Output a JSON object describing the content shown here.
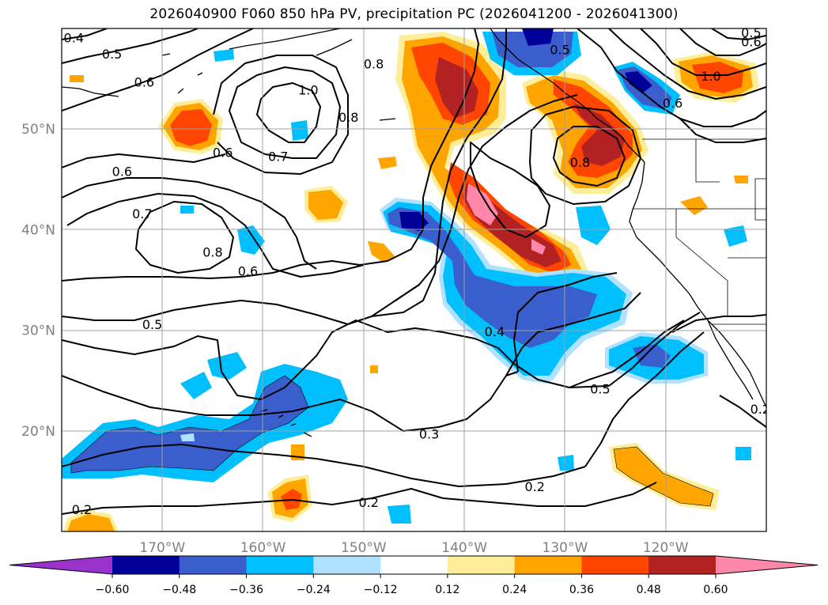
{
  "title": "2026040900 F060 850 hPa PV, precipitation PC (2026041200 - 2026041300)",
  "map": {
    "lon_range": [
      -180,
      -110
    ],
    "lat_range": [
      10,
      60
    ],
    "lat_ticks": [
      {
        "value": 50,
        "label": "50°N"
      },
      {
        "value": 40,
        "label": "40°N"
      },
      {
        "value": 30,
        "label": "30°N"
      },
      {
        "value": 20,
        "label": "20°N"
      }
    ],
    "lon_ticks": [
      {
        "value": -170,
        "label": "170°W"
      },
      {
        "value": -160,
        "label": "160°W"
      },
      {
        "value": -150,
        "label": "150°W"
      },
      {
        "value": -140,
        "label": "140°W"
      },
      {
        "value": -130,
        "label": "130°W"
      },
      {
        "value": -120,
        "label": "120°W"
      }
    ],
    "grid": true
  },
  "colorbar": {
    "extend": "both",
    "colors": [
      "#9933cc",
      "#000099",
      "#3a5fcd",
      "#00bfff",
      "#b0e2ff",
      "#ffffff",
      "#ffee99",
      "#ffa500",
      "#ff4500",
      "#b22222",
      "#ff88aa"
    ],
    "boundaries": [
      -0.6,
      -0.48,
      -0.36,
      -0.24,
      -0.12,
      0.12,
      0.24,
      0.36,
      0.48,
      0.6
    ],
    "labels": [
      "−0.60",
      "−0.48",
      "−0.36",
      "−0.24",
      "−0.12",
      "0.12",
      "0.24",
      "0.36",
      "0.48",
      "0.60"
    ]
  },
  "contour_labels": [
    {
      "text": "0.4",
      "lon": -178.8,
      "lat": 59.1
    },
    {
      "text": "0.5",
      "lon": -175,
      "lat": 57.5
    },
    {
      "text": "0.6",
      "lon": -171.8,
      "lat": 54.7
    },
    {
      "text": "1.0",
      "lon": -155.5,
      "lat": 53.9
    },
    {
      "text": "0.8",
      "lon": -151.5,
      "lat": 51.2
    },
    {
      "text": "0.8",
      "lon": -149,
      "lat": 56.5
    },
    {
      "text": "0.6",
      "lon": -174,
      "lat": 45.8
    },
    {
      "text": "0.6",
      "lon": -164,
      "lat": 47.7
    },
    {
      "text": "0.7",
      "lon": -158.5,
      "lat": 47.3
    },
    {
      "text": "0.7",
      "lon": -172,
      "lat": 41.6
    },
    {
      "text": "0.8",
      "lon": -165,
      "lat": 37.8
    },
    {
      "text": "0.6",
      "lon": -161.5,
      "lat": 35.9
    },
    {
      "text": "0.5",
      "lon": -171,
      "lat": 30.6
    },
    {
      "text": "0.4",
      "lon": -137,
      "lat": 29.9
    },
    {
      "text": "0.5",
      "lon": -126.5,
      "lat": 24.2
    },
    {
      "text": "0.3",
      "lon": -143.5,
      "lat": 19.7
    },
    {
      "text": "0.2",
      "lon": -133,
      "lat": 14.5
    },
    {
      "text": "0.2",
      "lon": -149.5,
      "lat": 12.9
    },
    {
      "text": "0.2",
      "lon": -178,
      "lat": 12.2
    },
    {
      "text": "0.8",
      "lon": -128.5,
      "lat": 46.7
    },
    {
      "text": "1.0",
      "lon": -115.5,
      "lat": 55.3
    },
    {
      "text": "0.6",
      "lon": -111.5,
      "lat": 58.7
    },
    {
      "text": "0.5",
      "lon": -111.5,
      "lat": 59.6
    },
    {
      "text": "0.5",
      "lon": -130.5,
      "lat": 57.9
    },
    {
      "text": "0.6",
      "lon": -119.3,
      "lat": 52.6
    },
    {
      "text": "0.2",
      "lon": -110.6,
      "lat": 22.2
    }
  ]
}
